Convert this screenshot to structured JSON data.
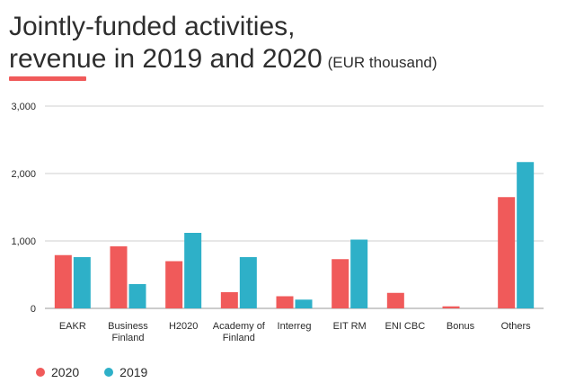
{
  "title": {
    "line1": "Jointly-funded activities,",
    "line2": "revenue in 2019 and 2020",
    "unit": "(EUR thousand)"
  },
  "colors": {
    "accent": "#f05a5a",
    "series_2020": "#f05a5a",
    "series_2019": "#2eb0c8",
    "grid": "#cfcfcf",
    "text": "#2b2b2b"
  },
  "legend": [
    {
      "label": "2020",
      "color": "#f05a5a"
    },
    {
      "label": "2019",
      "color": "#2eb0c8"
    }
  ],
  "chart_data": {
    "type": "bar",
    "title": "Jointly-funded activities, revenue in 2019 and 2020 (EUR thousand)",
    "categories": [
      [
        "EAKR"
      ],
      [
        "Business",
        "Finland"
      ],
      [
        "H2020"
      ],
      [
        "Academy of",
        "Finland"
      ],
      [
        "Interreg"
      ],
      [
        "EIT RM"
      ],
      [
        "ENI CBC"
      ],
      [
        "Bonus"
      ],
      [
        "Others"
      ]
    ],
    "series": [
      {
        "name": "2020",
        "color": "#f05a5a",
        "values": [
          790,
          920,
          700,
          240,
          180,
          730,
          230,
          30,
          1650
        ]
      },
      {
        "name": "2019",
        "color": "#2eb0c8",
        "values": [
          760,
          360,
          1120,
          760,
          130,
          1020,
          0,
          0,
          2170
        ]
      }
    ],
    "ylim": [
      0,
      3000
    ],
    "yticks": [
      0,
      1000,
      2000,
      3000
    ],
    "ytick_labels": [
      "0",
      "1,000",
      "2,000",
      "3,000"
    ],
    "grid": true,
    "legend_position": "bottom-left"
  }
}
